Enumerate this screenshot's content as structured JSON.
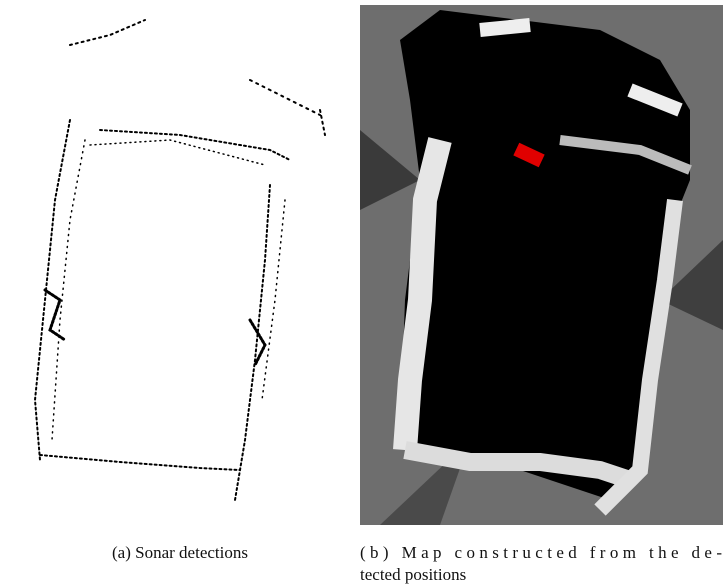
{
  "figure": {
    "captions": [
      {
        "lines": [
          "(a) Sonar detections"
        ]
      },
      {
        "lines": [
          "(b) Map constructed from the de-",
          "tected positions"
        ]
      }
    ]
  }
}
